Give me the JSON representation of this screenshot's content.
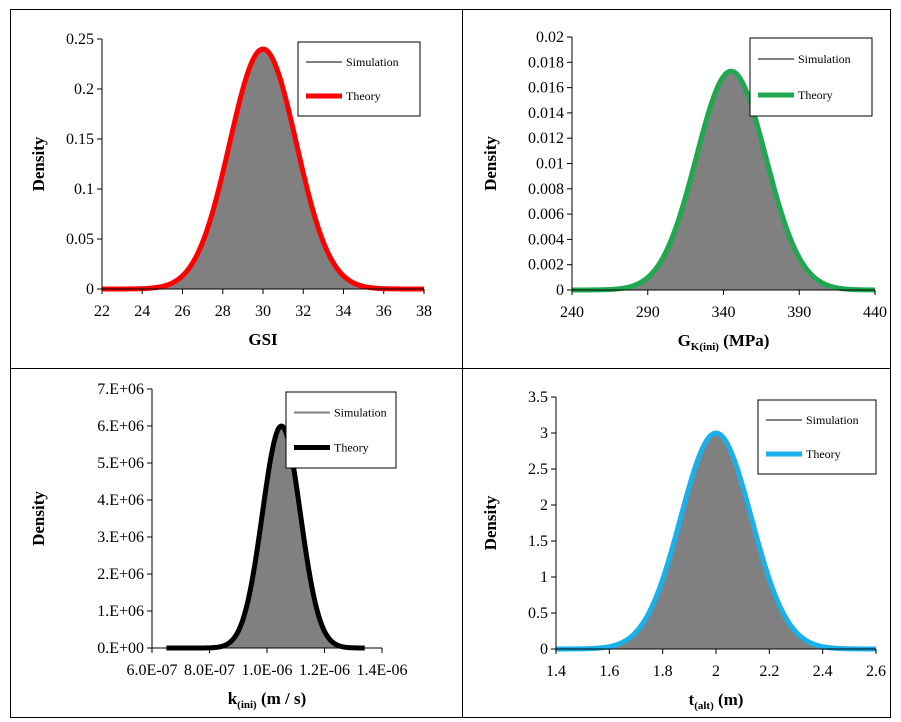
{
  "layout_note_colors": {
    "simulation_fill": "#808080",
    "simulation_legend": "#808080"
  },
  "chart_data": [
    {
      "type": "area",
      "panel": "top-left",
      "title": "",
      "xlabel": "GSI",
      "xlabel_sub": "",
      "xlabel_tail": "",
      "ylabel": "Density",
      "xlim": [
        22,
        38
      ],
      "ylim": [
        0,
        0.25
      ],
      "xticks": [
        "22",
        "24",
        "26",
        "28",
        "30",
        "32",
        "34",
        "36",
        "38"
      ],
      "yticks": [
        "0",
        "0.05",
        "0.1",
        "0.15",
        "0.2",
        "0.25"
      ],
      "distribution": {
        "mean": 30,
        "std": 1.66,
        "peak": 0.24
      },
      "x_range": [
        22,
        38
      ],
      "theory_color": "#ff0000",
      "legend": {
        "placement": "top-right",
        "entries": [
          "Simulation",
          "Theory"
        ]
      }
    },
    {
      "type": "area",
      "panel": "top-right",
      "title": "",
      "xlabel": "G",
      "xlabel_sub": "K(ini)",
      "xlabel_tail": " (MPa)",
      "ylabel": "Density",
      "xlim": [
        240,
        440
      ],
      "ylim": [
        0,
        0.02
      ],
      "xticks": [
        "240",
        "290",
        "340",
        "390",
        "440"
      ],
      "yticks": [
        "0",
        "0.002",
        "0.004",
        "0.006",
        "0.008",
        "0.01",
        "0.012",
        "0.014",
        "0.016",
        "0.018",
        "0.02"
      ],
      "distribution": {
        "mean": 345,
        "std": 23,
        "peak": 0.0173
      },
      "x_range": [
        240,
        440
      ],
      "theory_color": "#1fa84f",
      "legend": {
        "placement": "top-right",
        "entries": [
          "Simulation",
          "Theory"
        ]
      }
    },
    {
      "type": "area",
      "panel": "bottom-left",
      "title": "",
      "xlabel": "k",
      "xlabel_sub": "(ini)",
      "xlabel_tail": " (m / s)",
      "ylabel": "Density",
      "xlim": [
        6e-07,
        1.4e-06
      ],
      "ylim": [
        0,
        7000000
      ],
      "xticks": [
        "6.0E-07",
        "8.0E-07",
        "1.0E-06",
        "1.2E-06",
        "1.4E-06"
      ],
      "yticks": [
        "0.E+00",
        "1.E+06",
        "2.E+06",
        "3.E+06",
        "4.E+06",
        "5.E+06",
        "6.E+06",
        "7.E+06"
      ],
      "distribution": {
        "mean": 1.05e-06,
        "std": 6.6e-08,
        "peak": 6000000
      },
      "x_range": [
        6.5e-07,
        1.34e-06
      ],
      "theory_color": "#000000",
      "legend": {
        "placement": "top-right",
        "entries": [
          "Simulation",
          "Theory"
        ]
      }
    },
    {
      "type": "area",
      "panel": "bottom-right",
      "title": "",
      "xlabel": "t",
      "xlabel_sub": "(alt)",
      "xlabel_tail": " (m)",
      "ylabel": "Density",
      "xlim": [
        1.4,
        2.6
      ],
      "ylim": [
        0,
        3.5
      ],
      "xticks": [
        "1.4",
        "1.6",
        "1.8",
        "2",
        "2.2",
        "2.4",
        "2.6"
      ],
      "yticks": [
        "0",
        "0.5",
        "1",
        "1.5",
        "2",
        "2.5",
        "3",
        "3.5"
      ],
      "distribution": {
        "mean": 2.0,
        "std": 0.133,
        "peak": 3.0
      },
      "x_range": [
        1.4,
        2.6
      ],
      "theory_color": "#1ab0ea",
      "legend": {
        "placement": "top-right",
        "entries": [
          "Simulation",
          "Theory"
        ]
      }
    }
  ]
}
